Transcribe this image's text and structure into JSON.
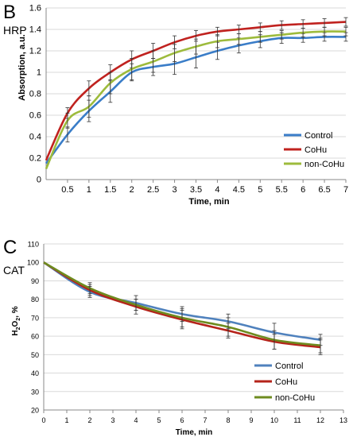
{
  "chart_data": [
    {
      "panel": "B",
      "tag": "HRP",
      "type": "line",
      "xlabel": "Time, min",
      "ylabel": "Absorption, a.u.",
      "xlim": [
        0,
        7
      ],
      "ylim": [
        0,
        1.6
      ],
      "xticks": [
        "0.5",
        "1",
        "1.5",
        "2",
        "2.5",
        "3",
        "3.5",
        "4",
        "4.5",
        "5",
        "5.5",
        "6",
        "6.5",
        "7"
      ],
      "xtick_values": [
        0.5,
        1,
        1.5,
        2,
        2.5,
        3,
        3.5,
        4,
        4.5,
        5,
        5.5,
        6,
        6.5,
        7
      ],
      "yticks": [
        "0",
        "0.2",
        "0.4",
        "0.6",
        "0.8",
        "1",
        "1.2",
        "1.4",
        "1.6"
      ],
      "ytick_values": [
        0,
        0.2,
        0.4,
        0.6,
        0.8,
        1,
        1.2,
        1.4,
        1.6
      ],
      "grid": "horizontal",
      "legend_position": "bottom-right",
      "x": [
        0,
        0.5,
        1,
        1.5,
        2,
        2.5,
        3,
        3.5,
        4,
        4.5,
        5,
        5.5,
        6,
        6.5,
        7
      ],
      "series": [
        {
          "name": "Control",
          "color": "#3a7dc8",
          "values": [
            0.15,
            0.42,
            0.64,
            0.82,
            1.0,
            1.05,
            1.08,
            1.14,
            1.2,
            1.25,
            1.29,
            1.32,
            1.32,
            1.33,
            1.33
          ],
          "err": [
            0,
            0.07,
            0.1,
            0.1,
            0.08,
            0.08,
            0.1,
            0.1,
            0.08,
            0.07,
            0.06,
            0.05,
            0.04,
            0.04,
            0.04
          ]
        },
        {
          "name": "CoHu",
          "color": "#c0221f",
          "values": [
            0.18,
            0.62,
            0.85,
            1.0,
            1.12,
            1.2,
            1.28,
            1.34,
            1.38,
            1.4,
            1.42,
            1.44,
            1.45,
            1.46,
            1.47
          ],
          "err": [
            0,
            0.05,
            0.07,
            0.07,
            0.08,
            0.07,
            0.06,
            0.05,
            0.04,
            0.04,
            0.04,
            0.04,
            0.04,
            0.04,
            0.04
          ]
        },
        {
          "name": "non-CoHu",
          "color": "#9dbb3c",
          "values": [
            0.1,
            0.55,
            0.68,
            0.9,
            1.03,
            1.1,
            1.18,
            1.24,
            1.29,
            1.31,
            1.33,
            1.35,
            1.37,
            1.38,
            1.38
          ],
          "err": [
            0,
            0.07,
            0.1,
            0.1,
            0.1,
            0.1,
            0.08,
            0.07,
            0.06,
            0.05,
            0.05,
            0.04,
            0.04,
            0.04,
            0.04
          ]
        }
      ]
    },
    {
      "panel": "C",
      "tag": "CAT",
      "type": "line",
      "xlabel": "Time, min",
      "ylabel_main": "H",
      "ylabel_sub": "2",
      "ylabel_main2": "O",
      "ylabel_sub2": "2",
      "ylabel_rest": ", %",
      "xlim": [
        0,
        13
      ],
      "ylim": [
        20,
        110
      ],
      "xticks": [
        "0",
        "1",
        "2",
        "3",
        "4",
        "5",
        "6",
        "7",
        "8",
        "9",
        "10",
        "11",
        "12",
        "13"
      ],
      "xtick_values": [
        0,
        1,
        2,
        3,
        4,
        5,
        6,
        7,
        8,
        9,
        10,
        11,
        12,
        13
      ],
      "yticks": [
        "20",
        "30",
        "40",
        "50",
        "60",
        "70",
        "80",
        "90",
        "100",
        "110"
      ],
      "ytick_values": [
        20,
        30,
        40,
        50,
        60,
        70,
        80,
        90,
        100,
        110
      ],
      "grid": "horizontal",
      "legend_position": "bottom-right",
      "x": [
        0,
        2,
        4,
        6,
        8,
        10,
        12
      ],
      "series": [
        {
          "name": "Control",
          "color": "#4f81bd",
          "values": [
            100,
            84,
            78,
            72,
            68,
            62,
            58
          ],
          "err": [
            0,
            3,
            4,
            4,
            4,
            5,
            3
          ]
        },
        {
          "name": "CoHu",
          "color": "#b5231a",
          "values": [
            100,
            85,
            76,
            69,
            63,
            57,
            54
          ],
          "err": [
            0,
            3,
            4,
            5,
            4,
            4,
            4
          ]
        },
        {
          "name": "non-CoHu",
          "color": "#6e8b1f",
          "values": [
            100,
            86,
            77,
            70,
            65,
            58,
            55
          ],
          "err": [
            0,
            3,
            3,
            5,
            5,
            5,
            4
          ]
        }
      ]
    }
  ]
}
